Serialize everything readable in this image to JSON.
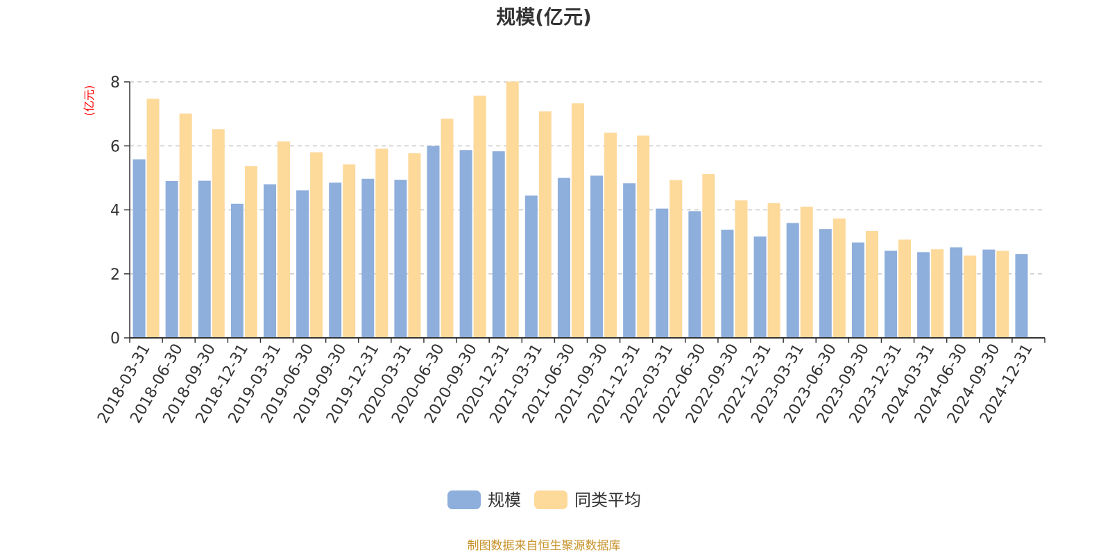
{
  "chart_data": {
    "type": "bar",
    "title": "规模(亿元)",
    "ylabel": "(亿元)",
    "xlabel": "",
    "ylim": [
      0,
      8
    ],
    "yticks": [
      0,
      2,
      4,
      6,
      8
    ],
    "grid": true,
    "legend_position": "bottom",
    "categories": [
      "2018-03-31",
      "2018-06-30",
      "2018-09-30",
      "2018-12-31",
      "2019-03-31",
      "2019-06-30",
      "2019-09-30",
      "2019-12-31",
      "2020-03-31",
      "2020-06-30",
      "2020-09-30",
      "2020-12-31",
      "2021-03-31",
      "2021-06-30",
      "2021-09-30",
      "2021-12-31",
      "2022-03-31",
      "2022-06-30",
      "2022-09-30",
      "2022-12-31",
      "2023-03-31",
      "2023-06-30",
      "2023-09-30",
      "2023-12-31",
      "2024-03-31",
      "2024-06-30",
      "2024-09-30",
      "2024-12-31"
    ],
    "series": [
      {
        "name": "规模",
        "color": "#8eaedc",
        "values": [
          5.58,
          4.9,
          4.91,
          4.19,
          4.8,
          4.61,
          4.85,
          4.97,
          4.94,
          6.0,
          5.87,
          5.83,
          4.45,
          5.0,
          5.07,
          4.83,
          4.04,
          3.96,
          3.38,
          3.17,
          3.59,
          3.4,
          2.98,
          2.72,
          2.68,
          2.83,
          2.76,
          2.62
        ]
      },
      {
        "name": "同类平均",
        "color": "#fdd99a",
        "values": [
          7.47,
          7.01,
          6.52,
          5.37,
          6.14,
          5.8,
          5.42,
          5.91,
          5.77,
          6.85,
          7.57,
          8.01,
          7.08,
          7.33,
          6.41,
          6.32,
          4.93,
          5.12,
          4.3,
          4.21,
          4.1,
          3.73,
          3.34,
          3.07,
          2.77,
          2.57,
          2.72,
          null
        ]
      }
    ],
    "source": "制图数据来自恒生聚源数据库"
  }
}
